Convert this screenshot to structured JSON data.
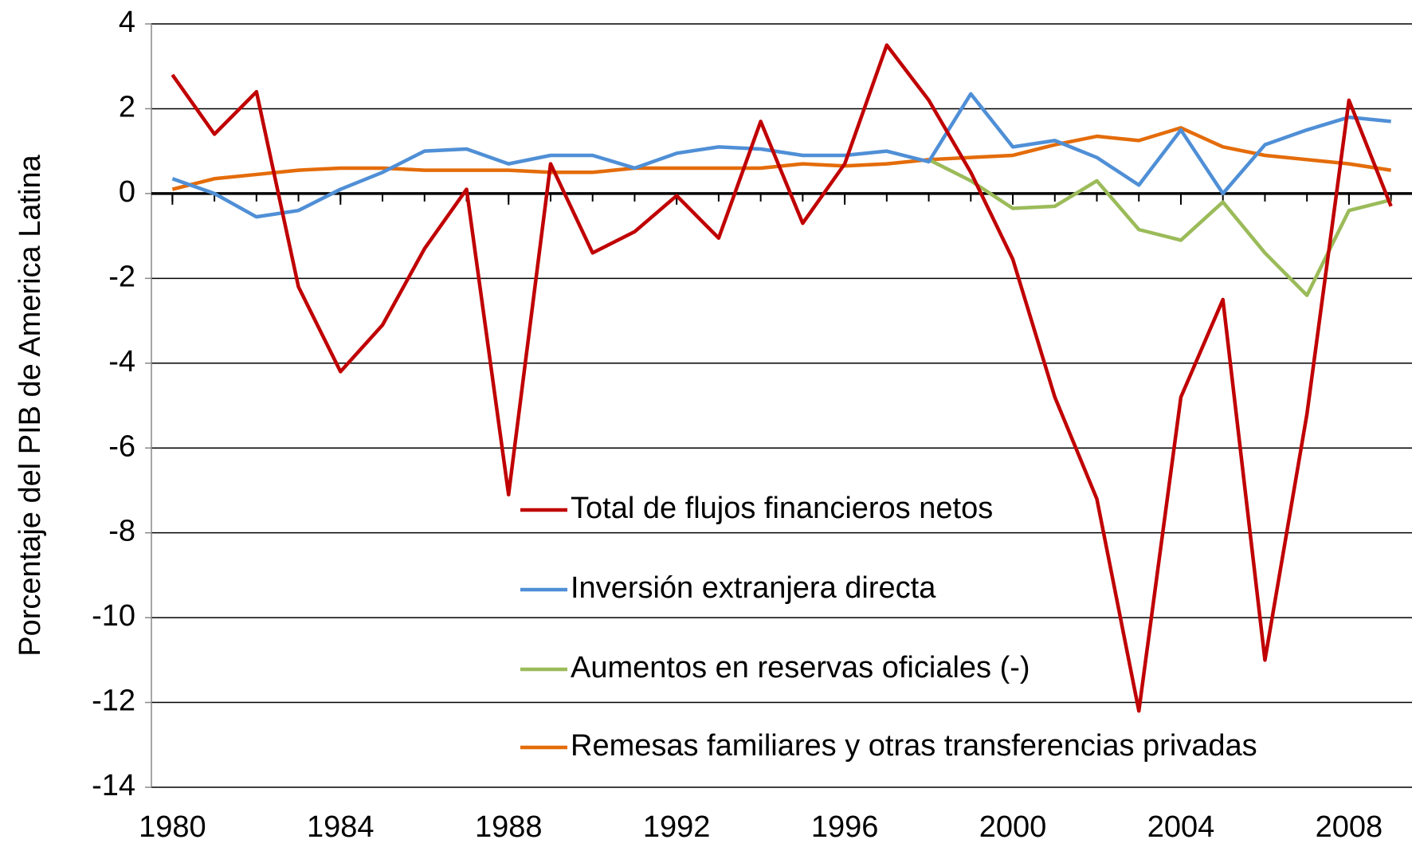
{
  "chart_data": {
    "type": "line",
    "y_label": "Porcentaje del PIB de America Latina",
    "x": [
      1980,
      1981,
      1982,
      1983,
      1984,
      1985,
      1986,
      1987,
      1988,
      1989,
      1990,
      1991,
      1992,
      1993,
      1994,
      1995,
      1996,
      1997,
      1998,
      1999,
      2000,
      2001,
      2002,
      2003,
      2004,
      2005,
      2006,
      2007,
      2008,
      2009
    ],
    "series": [
      {
        "name": "Total de flujos financieros netos",
        "color": "#c00000",
        "values": [
          2.8,
          1.4,
          2.4,
          -2.2,
          -4.2,
          -3.1,
          -1.3,
          0.1,
          -7.1,
          0.7,
          -1.4,
          -0.9,
          -0.05,
          -1.05,
          1.7,
          -0.7,
          0.7,
          3.5,
          2.2,
          0.5,
          -1.55,
          -4.8,
          -7.2,
          -12.2,
          -4.8,
          -2.5,
          -11.0,
          -5.2,
          2.2,
          -0.3
        ]
      },
      {
        "name": "Inversión extranjera directa",
        "color": "#4f8fd6",
        "values": [
          0.35,
          0.0,
          -0.55,
          -0.4,
          0.1,
          0.5,
          1.0,
          1.05,
          0.7,
          0.9,
          0.9,
          0.6,
          0.95,
          1.1,
          1.05,
          0.9,
          0.9,
          1.0,
          0.75,
          2.35,
          1.1,
          1.25,
          0.85,
          0.2,
          1.5,
          0.0,
          1.15,
          1.5,
          1.8,
          1.7
        ]
      },
      {
        "name": "Aumentos en reservas oficiales (-)",
        "color": "#9bbb59",
        "values": [
          null,
          null,
          null,
          null,
          null,
          null,
          null,
          null,
          null,
          null,
          null,
          null,
          null,
          null,
          null,
          null,
          null,
          null,
          0.8,
          0.3,
          -0.35,
          -0.3,
          0.3,
          -0.85,
          -1.1,
          -0.2,
          -1.4,
          -2.4,
          -0.4,
          -0.15
        ]
      },
      {
        "name": "Remesas familiares y otras transferencias privadas",
        "color": "#e46c0a",
        "values": [
          0.1,
          0.35,
          0.45,
          0.55,
          0.6,
          0.6,
          0.55,
          0.55,
          0.55,
          0.5,
          0.5,
          0.6,
          0.6,
          0.6,
          0.6,
          0.7,
          0.65,
          0.7,
          0.8,
          0.85,
          0.9,
          1.15,
          1.35,
          1.25,
          1.55,
          1.1,
          0.9,
          0.8,
          0.7,
          0.55
        ]
      }
    ],
    "xlim": [
      1979.5,
      2009.5
    ],
    "xticks": [
      1980,
      1984,
      1988,
      1992,
      1996,
      2000,
      2004,
      2008
    ],
    "ylim": [
      -14,
      4
    ],
    "yticks": [
      -14,
      -12,
      -10,
      -8,
      -6,
      -4,
      -2,
      0,
      2,
      4
    ],
    "grid": true
  }
}
